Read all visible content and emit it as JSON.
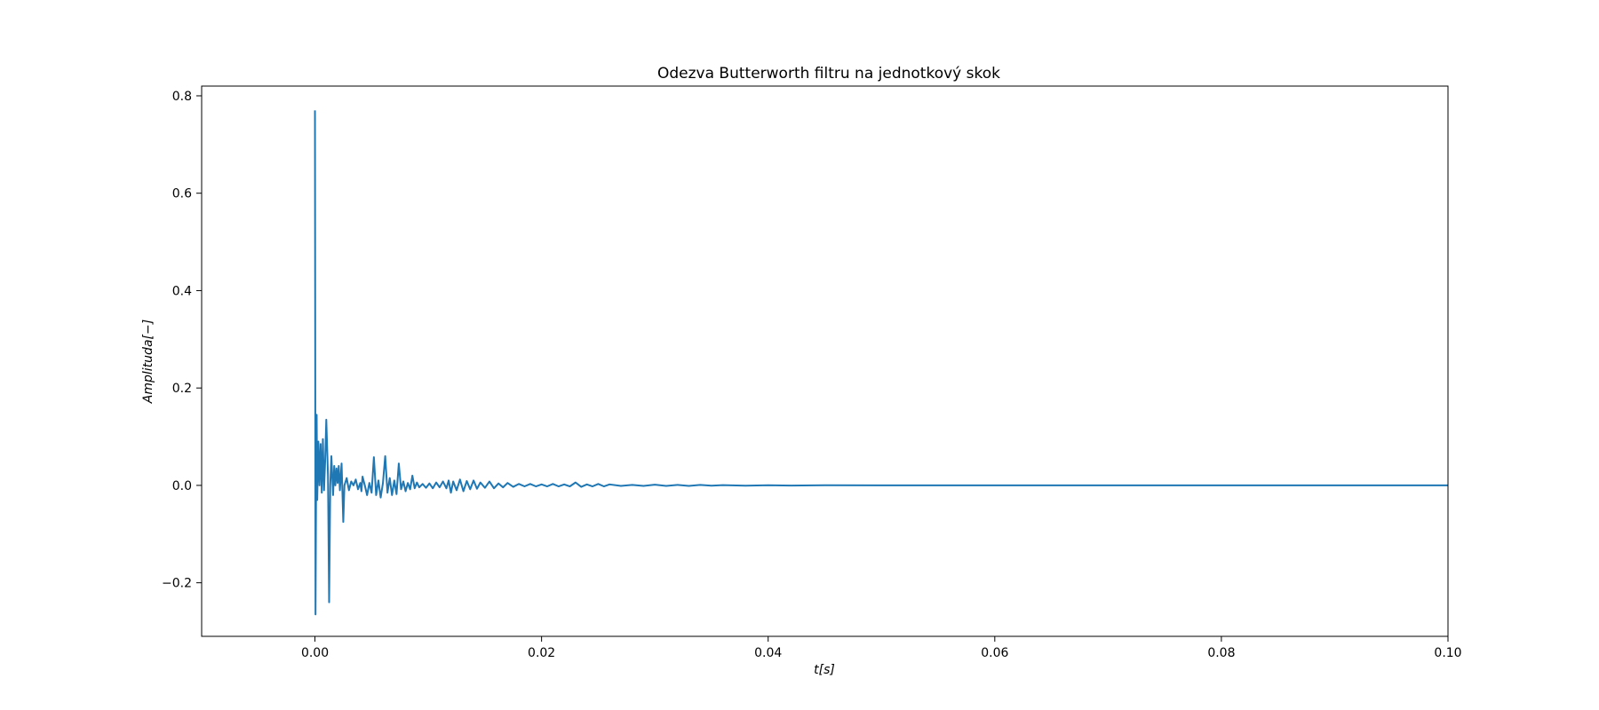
{
  "chart_data": {
    "type": "line",
    "title": "Odezva Butterworth filtru na jednotkový skok",
    "xlabel": "t[s]",
    "ylabel": "Amplituda[−]",
    "xlim": [
      -0.01,
      0.1
    ],
    "ylim": [
      -0.31,
      0.82
    ],
    "x_ticks": [
      0.0,
      0.02,
      0.04,
      0.06,
      0.08,
      0.1
    ],
    "x_tick_labels": [
      "0.00",
      "0.02",
      "0.04",
      "0.06",
      "0.08",
      "0.10"
    ],
    "y_ticks": [
      -0.2,
      0.0,
      0.2,
      0.4,
      0.6,
      0.8
    ],
    "y_tick_labels": [
      "−0.2",
      "0.0",
      "0.2",
      "0.4",
      "0.6",
      "0.8"
    ],
    "grid": false,
    "series": [
      {
        "color": "#1f77b4",
        "points": [
          [
            0.0,
            0.77
          ],
          [
            5e-05,
            -0.265
          ],
          [
            0.0001,
            0.0
          ],
          [
            0.00015,
            0.145
          ],
          [
            0.0002,
            -0.03
          ],
          [
            0.0003,
            0.09
          ],
          [
            0.0004,
            0.0
          ],
          [
            0.0005,
            0.085
          ],
          [
            0.0006,
            -0.015
          ],
          [
            0.0007,
            0.095
          ],
          [
            0.0008,
            -0.01
          ],
          [
            0.0009,
            0.05
          ],
          [
            0.001,
            0.135
          ],
          [
            0.00115,
            0.02
          ],
          [
            0.00125,
            -0.24
          ],
          [
            0.00135,
            0.0
          ],
          [
            0.00145,
            0.06
          ],
          [
            0.0016,
            -0.02
          ],
          [
            0.0017,
            0.04
          ],
          [
            0.0018,
            0.0
          ],
          [
            0.0019,
            0.035
          ],
          [
            0.002,
            0.005
          ],
          [
            0.0021,
            0.04
          ],
          [
            0.0022,
            -0.01
          ],
          [
            0.00235,
            0.045
          ],
          [
            0.0025,
            -0.075
          ],
          [
            0.0026,
            0.0
          ],
          [
            0.0028,
            0.015
          ],
          [
            0.003,
            -0.01
          ],
          [
            0.0032,
            0.008
          ],
          [
            0.0034,
            0.0
          ],
          [
            0.0036,
            0.012
          ],
          [
            0.0038,
            -0.008
          ],
          [
            0.004,
            0.005
          ],
          [
            0.0041,
            -0.012
          ],
          [
            0.0042,
            0.018
          ],
          [
            0.0044,
            0.0
          ],
          [
            0.0046,
            -0.02
          ],
          [
            0.0048,
            0.005
          ],
          [
            0.005,
            -0.015
          ],
          [
            0.0052,
            0.058
          ],
          [
            0.0054,
            -0.02
          ],
          [
            0.0056,
            0.01
          ],
          [
            0.0058,
            -0.025
          ],
          [
            0.006,
            0.005
          ],
          [
            0.0062,
            0.06
          ],
          [
            0.0064,
            -0.015
          ],
          [
            0.0066,
            0.015
          ],
          [
            0.0068,
            -0.02
          ],
          [
            0.007,
            0.01
          ],
          [
            0.0072,
            -0.018
          ],
          [
            0.0074,
            0.045
          ],
          [
            0.0076,
            -0.008
          ],
          [
            0.0078,
            0.008
          ],
          [
            0.008,
            -0.012
          ],
          [
            0.0082,
            0.005
          ],
          [
            0.0084,
            -0.008
          ],
          [
            0.0086,
            0.02
          ],
          [
            0.0088,
            -0.006
          ],
          [
            0.009,
            0.006
          ],
          [
            0.0092,
            -0.004
          ],
          [
            0.0095,
            0.003
          ],
          [
            0.0098,
            -0.005
          ],
          [
            0.0101,
            0.004
          ],
          [
            0.0104,
            -0.006
          ],
          [
            0.0107,
            0.006
          ],
          [
            0.011,
            -0.004
          ],
          [
            0.0113,
            0.008
          ],
          [
            0.0116,
            -0.006
          ],
          [
            0.0118,
            0.01
          ],
          [
            0.012,
            -0.015
          ],
          [
            0.0122,
            0.008
          ],
          [
            0.0125,
            -0.01
          ],
          [
            0.0128,
            0.012
          ],
          [
            0.0131,
            -0.012
          ],
          [
            0.0134,
            0.009
          ],
          [
            0.0137,
            -0.008
          ],
          [
            0.014,
            0.01
          ],
          [
            0.0143,
            -0.007
          ],
          [
            0.0146,
            0.006
          ],
          [
            0.015,
            -0.005
          ],
          [
            0.0154,
            0.008
          ],
          [
            0.0158,
            -0.006
          ],
          [
            0.0162,
            0.004
          ],
          [
            0.0166,
            -0.004
          ],
          [
            0.017,
            0.005
          ],
          [
            0.0175,
            -0.003
          ],
          [
            0.018,
            0.003
          ],
          [
            0.0185,
            -0.002
          ],
          [
            0.019,
            0.003
          ],
          [
            0.0195,
            -0.002
          ],
          [
            0.02,
            0.002
          ],
          [
            0.0205,
            -0.002
          ],
          [
            0.021,
            0.003
          ],
          [
            0.0215,
            -0.002
          ],
          [
            0.022,
            0.002
          ],
          [
            0.0225,
            -0.002
          ],
          [
            0.023,
            0.006
          ],
          [
            0.0235,
            -0.003
          ],
          [
            0.024,
            0.002
          ],
          [
            0.0245,
            -0.002
          ],
          [
            0.025,
            0.003
          ],
          [
            0.0255,
            -0.002
          ],
          [
            0.026,
            0.002
          ],
          [
            0.027,
            -0.001
          ],
          [
            0.028,
            0.001
          ],
          [
            0.029,
            -0.001
          ],
          [
            0.03,
            0.0015
          ],
          [
            0.031,
            -0.001
          ],
          [
            0.032,
            0.001
          ],
          [
            0.033,
            -0.001
          ],
          [
            0.034,
            0.001
          ],
          [
            0.035,
            -0.0005
          ],
          [
            0.036,
            0.0005
          ],
          [
            0.038,
            -0.0005
          ],
          [
            0.04,
            0.0004
          ],
          [
            0.042,
            -0.0003
          ],
          [
            0.045,
            0.0002
          ],
          [
            0.05,
            0.0
          ],
          [
            0.06,
            0.0
          ],
          [
            0.07,
            0.0
          ],
          [
            0.08,
            0.0
          ],
          [
            0.09,
            0.0
          ],
          [
            0.1,
            0.0
          ]
        ]
      }
    ]
  }
}
